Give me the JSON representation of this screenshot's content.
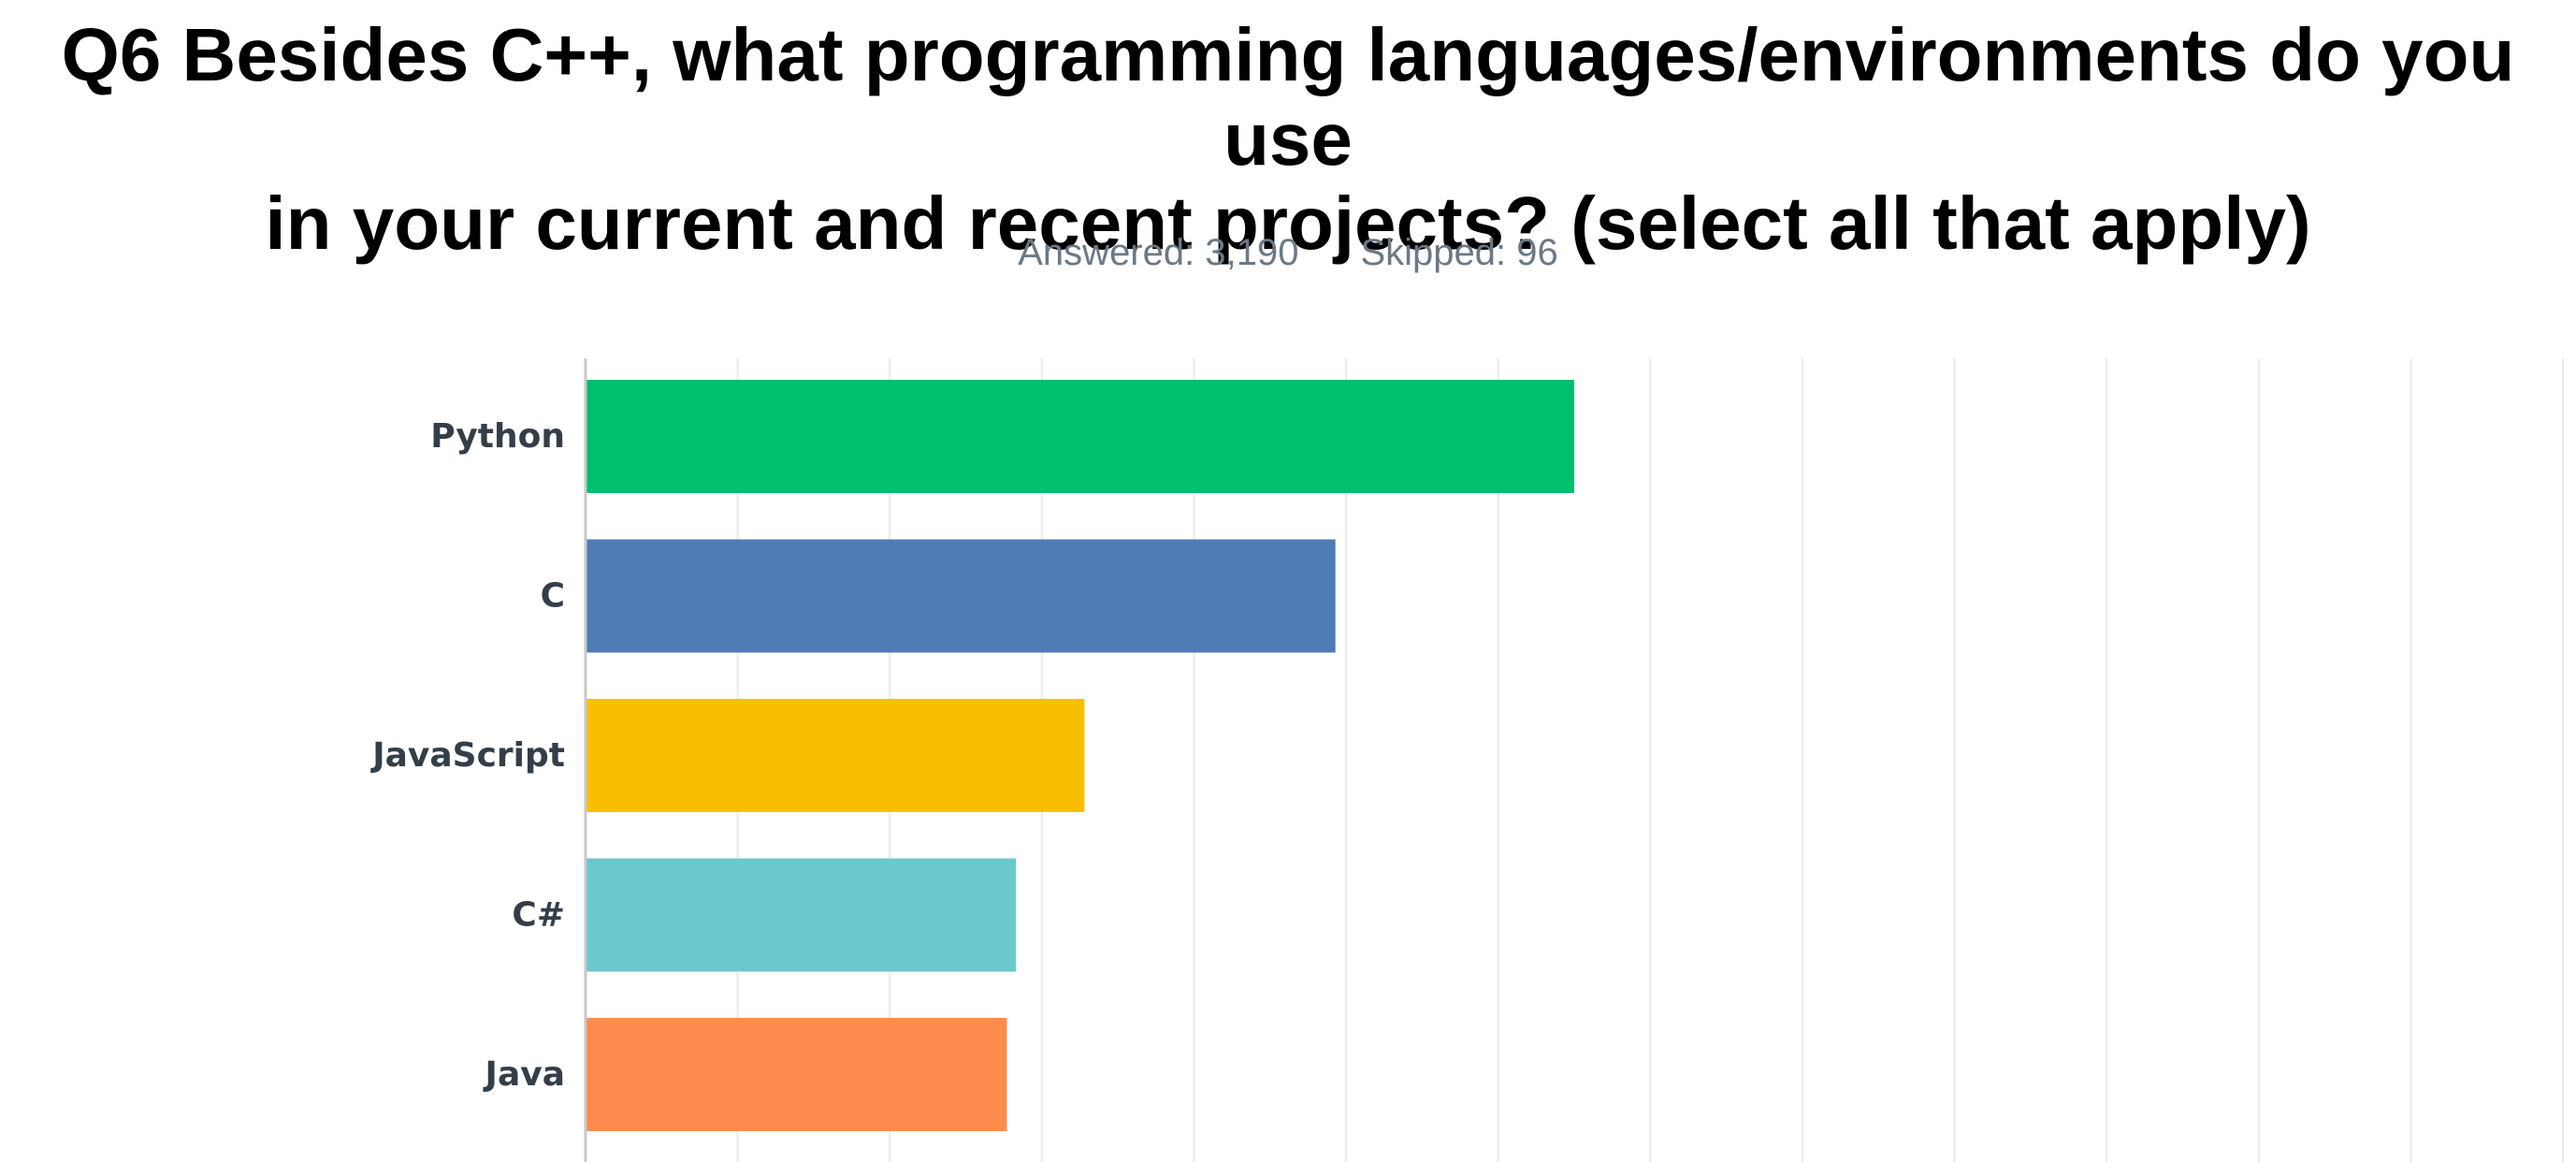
{
  "header": {
    "title_line1": "Q6 Besides C++, what programming languages/environments do you use",
    "title_line2": "in your current and recent projects? (select all that apply)",
    "answered": "Answered: 3,190",
    "skipped": "Skipped: 96"
  },
  "chart_data": {
    "type": "bar",
    "orientation": "horizontal",
    "categories": [
      "Python",
      "C",
      "JavaScript",
      "C#",
      "Java"
    ],
    "values": [
      65,
      49.3,
      32.8,
      28.3,
      27.7
    ],
    "xlim": [
      0,
      130
    ],
    "x_gridlines": [
      0,
      10,
      20,
      30,
      40,
      50,
      60,
      70,
      80,
      90,
      100,
      110,
      120,
      130
    ],
    "colors": [
      "#00bf6f",
      "#507cb6",
      "#f9be00",
      "#6bc8cd",
      "#ff8b4f"
    ],
    "grid": true,
    "legend": "none"
  },
  "colors": {
    "gridline": "#e9e9e9",
    "axis": "#c8c8c8",
    "label": "#333e48",
    "subtitle": "#6b7985"
  }
}
